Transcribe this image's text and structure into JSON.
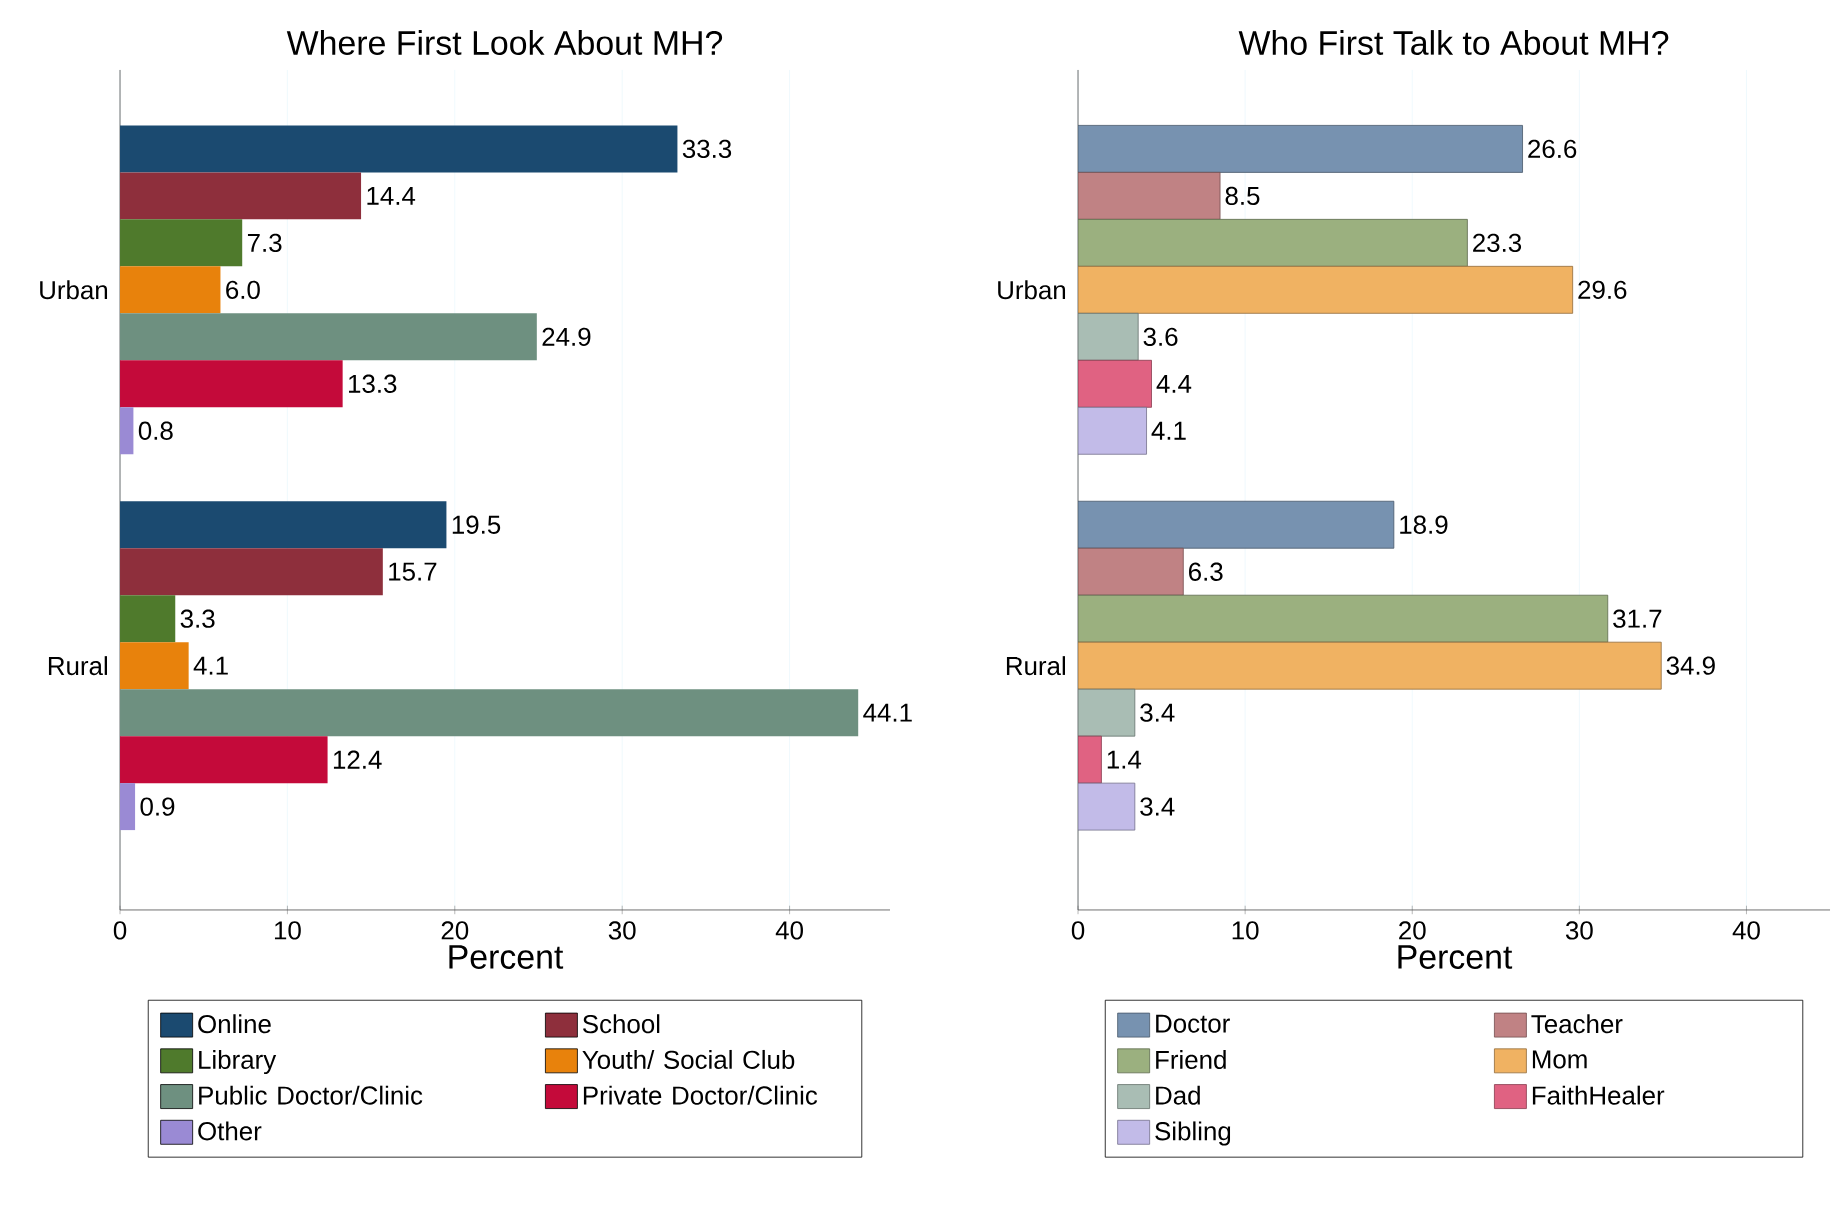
{
  "chart_data": [
    {
      "type": "bar",
      "orientation": "horizontal",
      "title": "Where First Look About MH?",
      "xlabel": "Percent",
      "categories": [
        "Urban",
        "Rural"
      ],
      "xlim": [
        0,
        46
      ],
      "xticks": [
        0,
        10,
        20,
        30,
        40
      ],
      "grid": "x",
      "legend": "bottom",
      "series": [
        {
          "name": "Online",
          "color": "#1b4a70",
          "values": [
            33.3,
            19.5
          ],
          "value_labels": [
            "33.3",
            "19.5"
          ]
        },
        {
          "name": "School",
          "color": "#8e2f3c",
          "values": [
            14.4,
            15.7
          ],
          "value_labels": [
            "14.4",
            "15.7"
          ]
        },
        {
          "name": "Library",
          "color": "#4f7a2c",
          "values": [
            7.3,
            3.3
          ],
          "value_labels": [
            "7.3",
            "3.3"
          ]
        },
        {
          "name": "Youth/ Social Club",
          "color": "#e8820c",
          "values": [
            6.0,
            4.1
          ],
          "value_labels": [
            "6.0",
            "4.1"
          ]
        },
        {
          "name": "Public Doctor/Clinic",
          "color": "#6e9080",
          "values": [
            24.9,
            44.1
          ],
          "value_labels": [
            "24.9",
            "44.1"
          ]
        },
        {
          "name": "Private Doctor/Clinic",
          "color": "#c40a3a",
          "values": [
            13.3,
            12.4
          ],
          "value_labels": [
            "13.3",
            "12.4"
          ]
        },
        {
          "name": "Other",
          "color": "#9a8ad4",
          "values": [
            0.8,
            0.9
          ],
          "value_labels": [
            "0.8",
            "0.9"
          ]
        }
      ]
    },
    {
      "type": "bar",
      "orientation": "horizontal",
      "title": "Who First Talk to About MH?",
      "xlabel": "Percent",
      "categories": [
        "Urban",
        "Rural"
      ],
      "xlim": [
        0,
        45
      ],
      "xticks": [
        0,
        10,
        20,
        30,
        40
      ],
      "grid": "x",
      "legend": "bottom",
      "series": [
        {
          "name": "Doctor",
          "color": "#7792b0",
          "values": [
            26.6,
            18.9
          ],
          "value_labels": [
            "26.6",
            "18.9"
          ]
        },
        {
          "name": "Teacher",
          "color": "#c08284",
          "values": [
            8.5,
            6.3
          ],
          "value_labels": [
            "8.5",
            "6.3"
          ]
        },
        {
          "name": "Friend",
          "color": "#9bb07f",
          "values": [
            23.3,
            31.7
          ],
          "value_labels": [
            "23.3",
            "31.7"
          ]
        },
        {
          "name": "Mom",
          "color": "#f0b262",
          "values": [
            29.6,
            34.9
          ],
          "value_labels": [
            "29.6",
            "34.9"
          ]
        },
        {
          "name": "Dad",
          "color": "#a9bdb4",
          "values": [
            3.6,
            3.4
          ],
          "value_labels": [
            "3.6",
            "3.4"
          ]
        },
        {
          "name": "FaithHealer",
          "color": "#e06282",
          "values": [
            4.4,
            1.4
          ],
          "value_labels": [
            "4.4",
            "1.4"
          ]
        },
        {
          "name": "Sibling",
          "color": "#c2bbe8",
          "values": [
            4.1,
            3.4
          ],
          "value_labels": [
            "4.1",
            "3.4"
          ]
        }
      ]
    }
  ]
}
